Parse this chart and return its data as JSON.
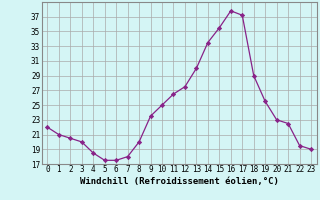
{
  "x": [
    0,
    1,
    2,
    3,
    4,
    5,
    6,
    7,
    8,
    9,
    10,
    11,
    12,
    13,
    14,
    15,
    16,
    17,
    18,
    19,
    20,
    21,
    22,
    23
  ],
  "y": [
    22,
    21,
    20.5,
    20,
    18.5,
    17.5,
    17.5,
    18,
    20,
    23.5,
    25,
    26.5,
    27.5,
    30,
    33.5,
    35.5,
    37.8,
    37.2,
    29,
    25.5,
    23,
    22.5,
    19.5,
    19
  ],
  "line_color": "#882288",
  "marker": "D",
  "marker_size": 2.2,
  "background_color": "#d4f5f5",
  "grid_color": "#aaaaaa",
  "xlabel": "Windchill (Refroidissement éolien,°C)",
  "xlim": [
    -0.5,
    23.5
  ],
  "ylim": [
    17,
    39
  ],
  "yticks": [
    17,
    19,
    21,
    23,
    25,
    27,
    29,
    31,
    33,
    35,
    37
  ],
  "xticks": [
    0,
    1,
    2,
    3,
    4,
    5,
    6,
    7,
    8,
    9,
    10,
    11,
    12,
    13,
    14,
    15,
    16,
    17,
    18,
    19,
    20,
    21,
    22,
    23
  ],
  "tick_fontsize": 5.5,
  "xlabel_fontsize": 6.5,
  "spine_color": "#888888"
}
